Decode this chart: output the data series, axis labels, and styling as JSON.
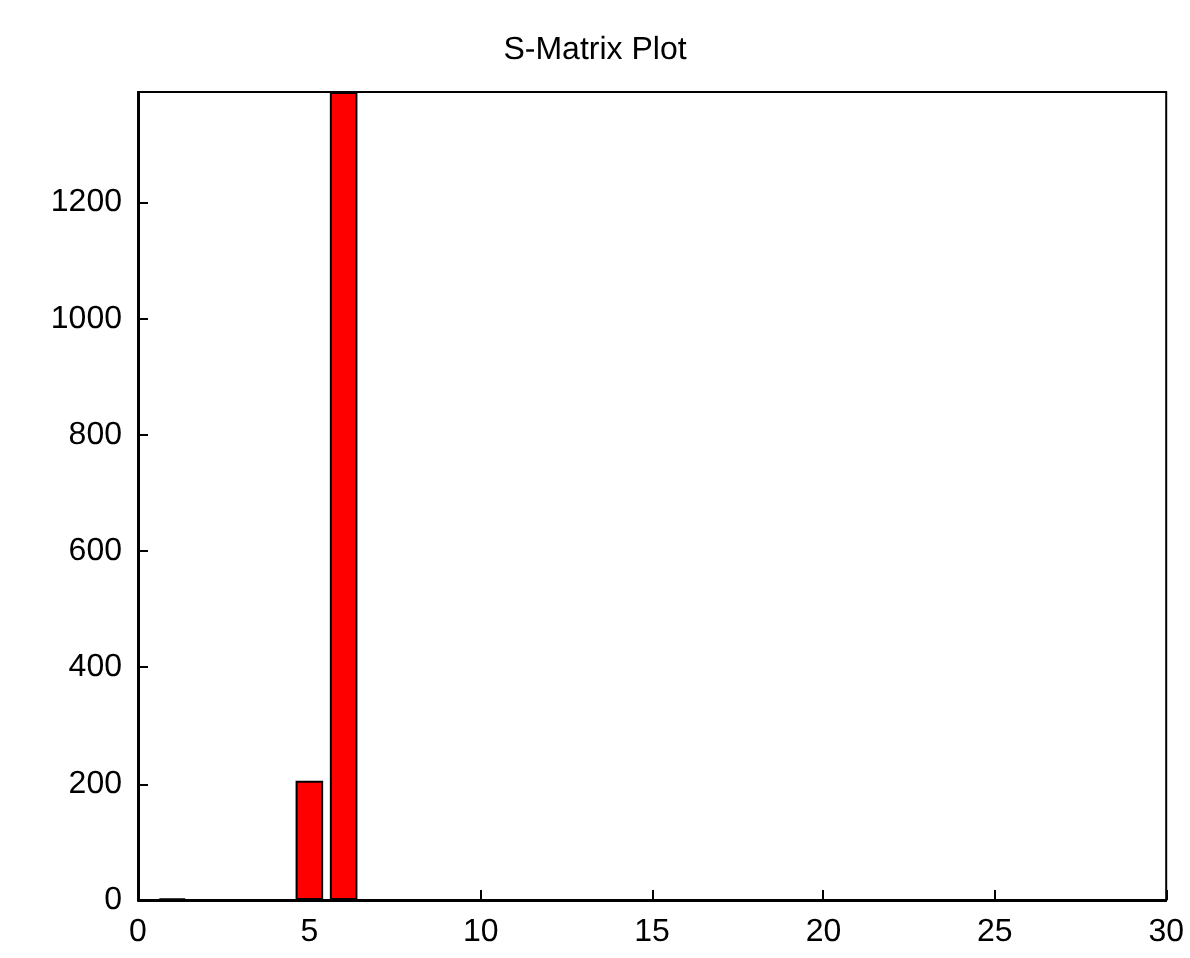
{
  "chart_data": {
    "type": "bar",
    "title": "S-Matrix Plot",
    "x": [
      1,
      5,
      6
    ],
    "values": [
      3,
      205,
      1390
    ],
    "color": "#ff0000",
    "xlim": [
      0,
      30
    ],
    "xticks": [
      0,
      5,
      10,
      15,
      20,
      25,
      30
    ],
    "ylim": [
      0,
      1390
    ],
    "yticks": [
      0,
      200,
      400,
      600,
      800,
      1000,
      1200
    ],
    "grid": false
  }
}
